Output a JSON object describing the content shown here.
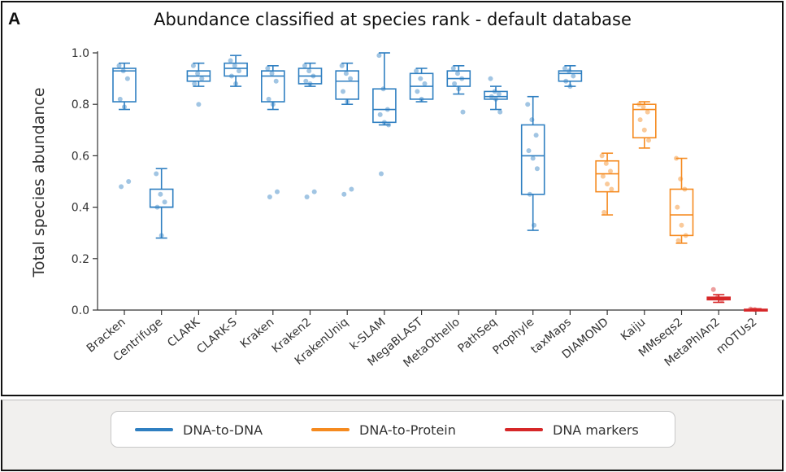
{
  "panel_letter": "A",
  "legend": [
    {
      "label": "DNA-to-DNA",
      "color": "#2f7fc1"
    },
    {
      "label": "DNA-to-Protein",
      "color": "#f58a1f"
    },
    {
      "label": "DNA markers",
      "color": "#d62728"
    }
  ],
  "chart_data": {
    "type": "box",
    "title": "Abundance classified at species rank - default database",
    "ylabel": "Total species abundance",
    "xlabel": "",
    "ylim": [
      0.0,
      1.0
    ],
    "yticks": [
      "0.0",
      "0.2",
      "0.4",
      "0.6",
      "0.8",
      "1.0"
    ],
    "grid": false,
    "legend_position": "bottom",
    "groups": {
      "DNA-to-DNA": "#2f7fc1",
      "DNA-to-Protein": "#f58a1f",
      "DNA markers": "#d62728"
    },
    "categories": [
      "Bracken",
      "Centrifuge",
      "CLARK",
      "CLARK-S",
      "Kraken",
      "Kraken2",
      "KrakenUniq",
      "k-SLAM",
      "MegaBLAST",
      "MetaOthello",
      "PathSeq",
      "Prophyle",
      "taxMaps",
      "DIAMOND",
      "Kaiju",
      "MMseqs2",
      "MetaPhlAn2",
      "mOTUs2"
    ],
    "boxes": [
      {
        "name": "Bracken",
        "group": "DNA-to-DNA",
        "whisker_low": 0.78,
        "q1": 0.81,
        "median": 0.93,
        "q3": 0.94,
        "whisker_high": 0.96,
        "points": [
          0.95,
          0.93,
          0.9,
          0.82,
          0.79,
          0.5,
          0.48
        ]
      },
      {
        "name": "Centrifuge",
        "group": "DNA-to-DNA",
        "whisker_low": 0.28,
        "q1": 0.4,
        "median": 0.4,
        "q3": 0.47,
        "whisker_high": 0.55,
        "points": [
          0.53,
          0.45,
          0.42,
          0.4,
          0.29
        ]
      },
      {
        "name": "CLARK",
        "group": "DNA-to-DNA",
        "whisker_low": 0.87,
        "q1": 0.89,
        "median": 0.91,
        "q3": 0.93,
        "whisker_high": 0.96,
        "points": [
          0.95,
          0.92,
          0.9,
          0.88,
          0.8
        ]
      },
      {
        "name": "CLARK-S",
        "group": "DNA-to-DNA",
        "whisker_low": 0.87,
        "q1": 0.91,
        "median": 0.94,
        "q3": 0.96,
        "whisker_high": 0.99,
        "points": [
          0.97,
          0.95,
          0.93,
          0.91,
          0.88
        ]
      },
      {
        "name": "Kraken",
        "group": "DNA-to-DNA",
        "whisker_low": 0.78,
        "q1": 0.81,
        "median": 0.91,
        "q3": 0.93,
        "whisker_high": 0.95,
        "points": [
          0.94,
          0.92,
          0.89,
          0.82,
          0.8,
          0.46,
          0.44
        ]
      },
      {
        "name": "Kraken2",
        "group": "DNA-to-DNA",
        "whisker_low": 0.87,
        "q1": 0.88,
        "median": 0.91,
        "q3": 0.94,
        "whisker_high": 0.96,
        "points": [
          0.95,
          0.93,
          0.91,
          0.89,
          0.88,
          0.46,
          0.44
        ]
      },
      {
        "name": "KrakenUniq",
        "group": "DNA-to-DNA",
        "whisker_low": 0.8,
        "q1": 0.82,
        "median": 0.89,
        "q3": 0.93,
        "whisker_high": 0.96,
        "points": [
          0.95,
          0.92,
          0.9,
          0.85,
          0.81,
          0.47,
          0.45
        ]
      },
      {
        "name": "k-SLAM",
        "group": "DNA-to-DNA",
        "whisker_low": 0.72,
        "q1": 0.73,
        "median": 0.78,
        "q3": 0.86,
        "whisker_high": 1.0,
        "points": [
          0.99,
          0.86,
          0.78,
          0.76,
          0.73,
          0.72,
          0.53
        ]
      },
      {
        "name": "MegaBLAST",
        "group": "DNA-to-DNA",
        "whisker_low": 0.81,
        "q1": 0.82,
        "median": 0.87,
        "q3": 0.92,
        "whisker_high": 0.94,
        "points": [
          0.93,
          0.9,
          0.88,
          0.85,
          0.82
        ]
      },
      {
        "name": "MetaOthello",
        "group": "DNA-to-DNA",
        "whisker_low": 0.84,
        "q1": 0.87,
        "median": 0.9,
        "q3": 0.93,
        "whisker_high": 0.95,
        "points": [
          0.94,
          0.92,
          0.9,
          0.88,
          0.86,
          0.77
        ]
      },
      {
        "name": "PathSeq",
        "group": "DNA-to-DNA",
        "whisker_low": 0.78,
        "q1": 0.82,
        "median": 0.83,
        "q3": 0.85,
        "whisker_high": 0.87,
        "points": [
          0.9,
          0.85,
          0.84,
          0.83,
          0.82,
          0.77
        ]
      },
      {
        "name": "Prophyle",
        "group": "DNA-to-DNA",
        "whisker_low": 0.31,
        "q1": 0.45,
        "median": 0.6,
        "q3": 0.72,
        "whisker_high": 0.83,
        "points": [
          0.8,
          0.74,
          0.68,
          0.62,
          0.59,
          0.55,
          0.45,
          0.33
        ]
      },
      {
        "name": "taxMaps",
        "group": "DNA-to-DNA",
        "whisker_low": 0.87,
        "q1": 0.89,
        "median": 0.92,
        "q3": 0.93,
        "whisker_high": 0.95,
        "points": [
          0.94,
          0.93,
          0.91,
          0.89,
          0.87
        ]
      },
      {
        "name": "DIAMOND",
        "group": "DNA-to-Protein",
        "whisker_low": 0.37,
        "q1": 0.46,
        "median": 0.53,
        "q3": 0.58,
        "whisker_high": 0.61,
        "points": [
          0.6,
          0.57,
          0.54,
          0.52,
          0.49,
          0.47,
          0.38
        ]
      },
      {
        "name": "Kaiju",
        "group": "DNA-to-Protein",
        "whisker_low": 0.63,
        "q1": 0.67,
        "median": 0.78,
        "q3": 0.8,
        "whisker_high": 0.81,
        "points": [
          0.8,
          0.79,
          0.77,
          0.74,
          0.7,
          0.66
        ]
      },
      {
        "name": "MMseqs2",
        "group": "DNA-to-Protein",
        "whisker_low": 0.26,
        "q1": 0.29,
        "median": 0.37,
        "q3": 0.47,
        "whisker_high": 0.59,
        "points": [
          0.59,
          0.51,
          0.47,
          0.4,
          0.33,
          0.29,
          0.27
        ]
      },
      {
        "name": "MetaPhlAn2",
        "group": "DNA markers",
        "whisker_low": 0.03,
        "q1": 0.04,
        "median": 0.045,
        "q3": 0.05,
        "whisker_high": 0.06,
        "points": [
          0.08,
          0.05,
          0.04
        ]
      },
      {
        "name": "mOTUs2",
        "group": "DNA markers",
        "whisker_low": 0.0,
        "q1": 0.0,
        "median": 0.0,
        "q3": 0.003,
        "whisker_high": 0.005,
        "points": [
          0.004,
          0.002
        ]
      }
    ]
  }
}
